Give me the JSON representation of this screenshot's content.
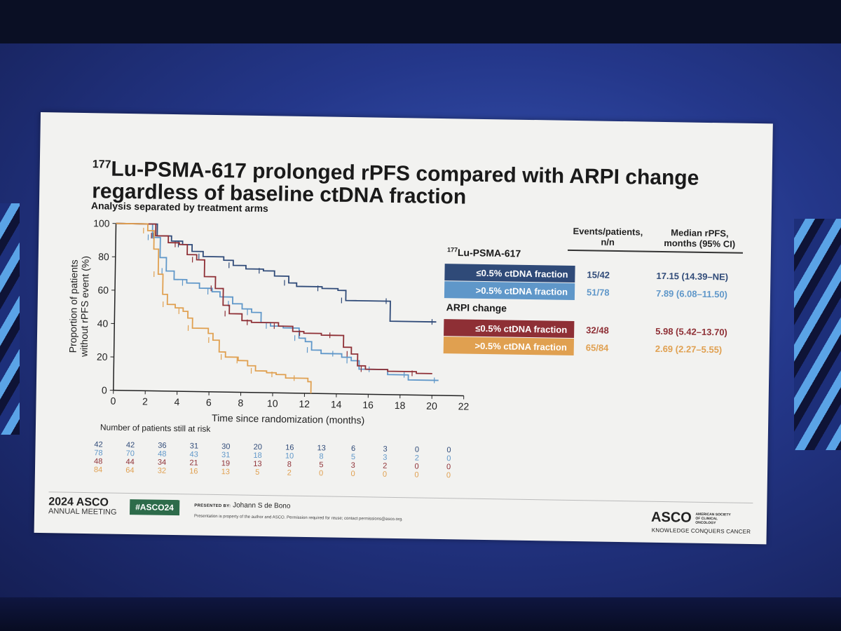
{
  "slide": {
    "title_sup": "177",
    "title_line1": "Lu-PSMA-617 prolonged rPFS compared with ARPI change",
    "title_line2": "regardless of baseline ctDNA fraction",
    "subtitle": "Analysis separated by treatment arms"
  },
  "table_headers": {
    "events_line1": "Events/patients,",
    "events_line2": "n/n",
    "median_line1": "Median rPFS,",
    "median_line2": "months (95% CI)"
  },
  "legend": {
    "group1_sup": "177",
    "group1": "Lu-PSMA-617",
    "group2": "ARPI change",
    "rows": [
      {
        "label": "≤0.5% ctDNA fraction",
        "events": "15/42",
        "median": "17.15 (14.39–NE)",
        "color": "#2f4a78"
      },
      {
        "label": ">0.5% ctDNA fraction",
        "events": "51/78",
        "median": "7.89 (6.08–11.50)",
        "color": "#5f97c9"
      },
      {
        "label": "≤0.5% ctDNA fraction",
        "events": "32/48",
        "median": "5.98 (5.42–13.70)",
        "color": "#8e2f35"
      },
      {
        "label": ">0.5% ctDNA fraction",
        "events": "65/84",
        "median": "2.69 (2.27–5.55)",
        "color": "#e0a050"
      }
    ]
  },
  "risk_table": {
    "title": "Number of patients still at risk",
    "rows": [
      [
        "42",
        "42",
        "36",
        "31",
        "30",
        "20",
        "16",
        "13",
        "6",
        "3",
        "0",
        "0"
      ],
      [
        "78",
        "70",
        "48",
        "43",
        "31",
        "18",
        "10",
        "8",
        "5",
        "3",
        "2",
        "0"
      ],
      [
        "48",
        "44",
        "34",
        "21",
        "19",
        "13",
        "8",
        "5",
        "3",
        "2",
        "0",
        "0"
      ],
      [
        "84",
        "64",
        "32",
        "16",
        "13",
        "5",
        "2",
        "0",
        "0",
        "0",
        "0",
        "0"
      ]
    ]
  },
  "chart_data": {
    "type": "line",
    "xlabel": "Time since randomization (months)",
    "ylabel_line1": "Proportion of patients",
    "ylabel_line2": "without rPFS event (%)",
    "xlim": [
      0,
      22
    ],
    "ylim": [
      0,
      100
    ],
    "xticks": [
      "0",
      "2",
      "4",
      "6",
      "8",
      "10",
      "12",
      "14",
      "16",
      "18",
      "20",
      "22"
    ],
    "yticks": [
      "0",
      "20",
      "40",
      "60",
      "80",
      "100"
    ],
    "series": [
      {
        "color": "#2f4a78",
        "points": [
          [
            0,
            100
          ],
          [
            2.6,
            100
          ],
          [
            2.6,
            93
          ],
          [
            3.5,
            90
          ],
          [
            4.2,
            88
          ],
          [
            4.8,
            84
          ],
          [
            5.5,
            81
          ],
          [
            6.8,
            79
          ],
          [
            7.4,
            76
          ],
          [
            8.2,
            74
          ],
          [
            9.3,
            73
          ],
          [
            10,
            70
          ],
          [
            10.9,
            66
          ],
          [
            11.4,
            64
          ],
          [
            13,
            63
          ],
          [
            14,
            62
          ],
          [
            14.5,
            56
          ],
          [
            15.2,
            56
          ],
          [
            17.3,
            56
          ],
          [
            17.3,
            44
          ],
          [
            20.2,
            44
          ]
        ]
      },
      {
        "color": "#5f97c9",
        "points": [
          [
            0,
            100
          ],
          [
            1.8,
            100
          ],
          [
            2.3,
            92
          ],
          [
            2.8,
            80
          ],
          [
            3.2,
            72
          ],
          [
            3.7,
            67
          ],
          [
            4.5,
            65
          ],
          [
            5.3,
            62
          ],
          [
            6.1,
            60
          ],
          [
            6.6,
            57
          ],
          [
            7.4,
            53
          ],
          [
            8,
            50
          ],
          [
            8.6,
            48
          ],
          [
            9.2,
            42
          ],
          [
            9.8,
            40
          ],
          [
            10.6,
            39
          ],
          [
            11.6,
            33
          ],
          [
            12,
            31
          ],
          [
            12.4,
            26
          ],
          [
            13,
            24
          ],
          [
            14,
            24
          ],
          [
            14.3,
            22
          ],
          [
            14.9,
            20
          ],
          [
            15.4,
            15
          ],
          [
            16.3,
            15
          ],
          [
            17.2,
            12
          ],
          [
            18.5,
            12
          ],
          [
            18.5,
            9
          ],
          [
            20.4,
            9
          ]
        ]
      },
      {
        "color": "#8e2f35",
        "points": [
          [
            0,
            100
          ],
          [
            2,
            100
          ],
          [
            2.5,
            93
          ],
          [
            3.3,
            89
          ],
          [
            4,
            88
          ],
          [
            4.5,
            82
          ],
          [
            5.1,
            79
          ],
          [
            5.6,
            69
          ],
          [
            6.3,
            62
          ],
          [
            6.8,
            52
          ],
          [
            7.2,
            47
          ],
          [
            8,
            43
          ],
          [
            8.6,
            42
          ],
          [
            9.5,
            42
          ],
          [
            10.3,
            40
          ],
          [
            11.2,
            37
          ],
          [
            11.9,
            36
          ],
          [
            13,
            35
          ],
          [
            13.8,
            35
          ],
          [
            14.4,
            28
          ],
          [
            14.9,
            24
          ],
          [
            15.3,
            17
          ],
          [
            15.8,
            15
          ],
          [
            17.2,
            14
          ],
          [
            19,
            13
          ],
          [
            20,
            13
          ]
        ]
      },
      {
        "color": "#e0a050",
        "points": [
          [
            0,
            100
          ],
          [
            1.7,
            100
          ],
          [
            2,
            96
          ],
          [
            2.4,
            85
          ],
          [
            2.7,
            70
          ],
          [
            3,
            58
          ],
          [
            3.3,
            52
          ],
          [
            3.8,
            50
          ],
          [
            4.3,
            48
          ],
          [
            4.6,
            44
          ],
          [
            4.9,
            38
          ],
          [
            5.9,
            35
          ],
          [
            6.2,
            31
          ],
          [
            6.6,
            24
          ],
          [
            7,
            21
          ],
          [
            7.8,
            19
          ],
          [
            8,
            19
          ],
          [
            8.4,
            16
          ],
          [
            8.9,
            13
          ],
          [
            9.6,
            12
          ],
          [
            10.2,
            11
          ],
          [
            10.8,
            9
          ],
          [
            11.6,
            9
          ],
          [
            12.2,
            7
          ],
          [
            12.4,
            0
          ]
        ]
      }
    ]
  },
  "footer": {
    "year_asco": "2024 ASCO",
    "annual_meeting": "ANNUAL MEETING",
    "hashtag": "#ASCO24",
    "presented_label": "PRESENTED BY:",
    "presenter": "Johann S de Bono",
    "disclaimer": "Presentation is property of the author and ASCO. Permission required for reuse; contact permissions@asco.org.",
    "asco": "ASCO",
    "asco_small": "AMERICAN SOCIETY OF CLINICAL ONCOLOGY",
    "tagline": "KNOWLEDGE CONQUERS CANCER"
  }
}
